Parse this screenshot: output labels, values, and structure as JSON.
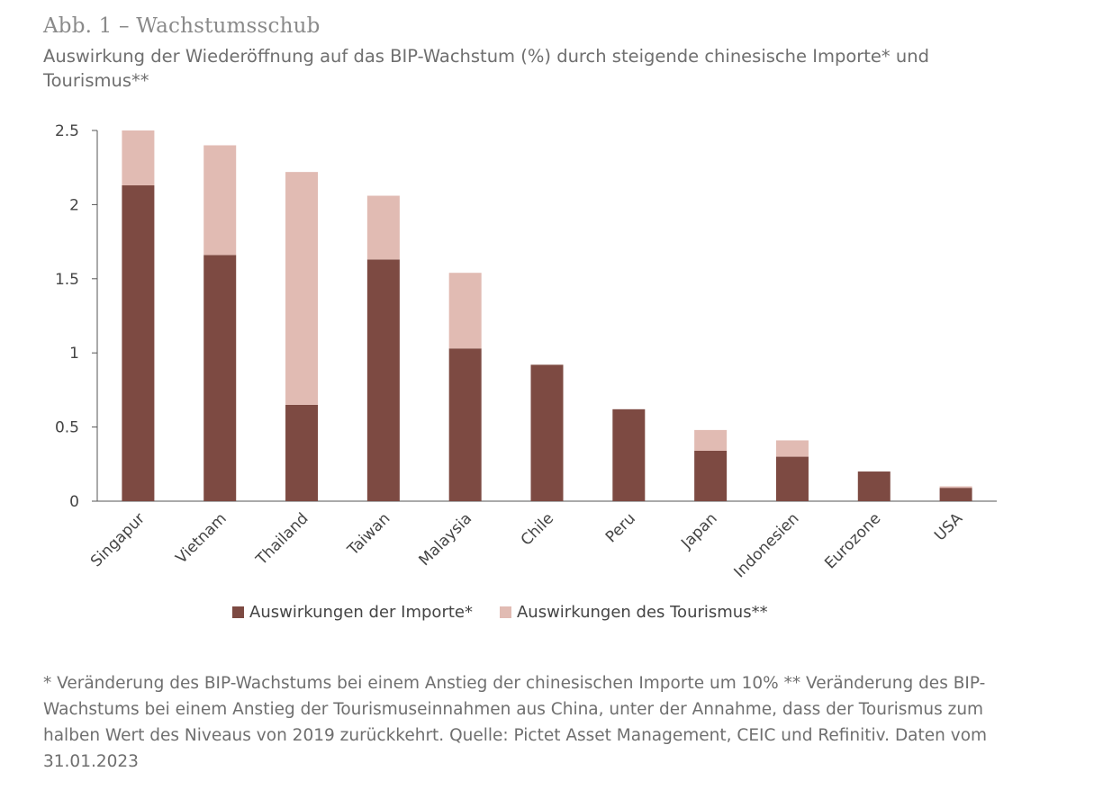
{
  "header": {
    "title": "Abb. 1 – Wachstumsschub",
    "subtitle": "Auswirkung der Wiederöffnung auf das BIP-Wachstum (%) durch steigende chinesische Importe* und Tourismus**"
  },
  "colors": {
    "imports": "#7d4a42",
    "tourism": "#e1bbb3",
    "axis": "#555555"
  },
  "chart_data": {
    "type": "bar",
    "stacked": true,
    "categories": [
      "Singapur",
      "Vietnam",
      "Thailand",
      "Taiwan",
      "Malaysia",
      "Chile",
      "Peru",
      "Japan",
      "Indonesien",
      "Eurozone",
      "USA"
    ],
    "series": [
      {
        "name": "Auswirkungen der Importe*",
        "values": [
          2.13,
          1.66,
          0.65,
          1.63,
          1.03,
          0.92,
          0.62,
          0.34,
          0.3,
          0.2,
          0.09
        ]
      },
      {
        "name": "Auswirkungen des Tourismus**",
        "values": [
          0.37,
          0.74,
          1.57,
          0.43,
          0.51,
          0.0,
          0.0,
          0.14,
          0.11,
          0.0,
          0.01
        ]
      }
    ],
    "yticks": [
      "0",
      "0.5",
      "1",
      "1.5",
      "2",
      "2.5"
    ],
    "ylim": [
      0,
      2.5
    ],
    "grid": false,
    "legend_position": "bottom"
  },
  "footnote": "* Veränderung des BIP-Wachstums bei einem Anstieg der chinesischen Importe um 10% ** Veränderung des BIP-Wachstums bei einem Anstieg der Tourismuseinnahmen aus China, unter der Annahme, dass der Tourismus zum halben Wert des Niveaus von 2019 zurückkehrt. Quelle: Pictet Asset Management, CEIC und Refinitiv. Daten vom 31.01.2023"
}
